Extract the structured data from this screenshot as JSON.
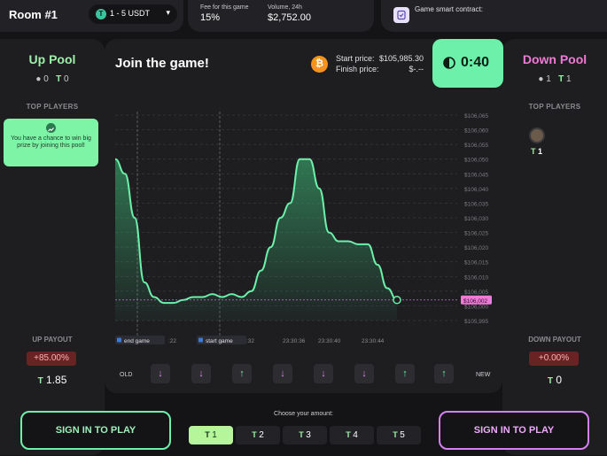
{
  "header": {
    "room_title": "Room #1",
    "range_label": "1 - 5 USDT",
    "fee_label": "Fee for this game",
    "fee_value": "15%",
    "volume_label": "Volume, 24h",
    "volume_value": "$2,752.00",
    "contract_label": "Game smart contract:"
  },
  "up_pool": {
    "title": "Up Pool",
    "players": "0",
    "amount": "0",
    "top_players_label": "TOP PLAYERS",
    "chance_text": "You have a chance to win big prize by joining this pool!",
    "payout_label": "UP PAYOUT",
    "payout_pct": "+85.00%",
    "payout_amount": "1.85"
  },
  "down_pool": {
    "title": "Down Pool",
    "players": "1",
    "amount": "1",
    "top_players_label": "TOP PLAYERS",
    "player_amount": "1",
    "payout_label": "DOWN PAYOUT",
    "payout_pct": "+0.00%",
    "payout_amount": "0"
  },
  "game": {
    "title": "Join the game!",
    "start_price_label": "Start price:",
    "start_price_value": "$105,985.30",
    "finish_price_label": "Finish price:",
    "finish_price_value": "$-.--",
    "timer": "0:40",
    "old_label": "OLD",
    "new_label": "NEW"
  },
  "history_arrows": [
    "down",
    "down",
    "up",
    "down",
    "down",
    "down",
    "up",
    "up"
  ],
  "chart_data": {
    "type": "area",
    "y_ticks": [
      "$106,065",
      "$106,060",
      "$106,055",
      "$106,050",
      "$106,045",
      "$106,040",
      "$106,035",
      "$106,030",
      "$106,025",
      "$106,020",
      "$106,015",
      "$106,010",
      "$106,005",
      "$106,000",
      "$105,995"
    ],
    "x_ticks": [
      ":22",
      ":32",
      "23:30:36",
      "23:30:40",
      "23:30:44"
    ],
    "current_price_label": "$106,002",
    "markers": [
      {
        "label": "end game"
      },
      {
        "label": "start game"
      }
    ],
    "ylim": [
      105995,
      106065
    ],
    "series": [
      {
        "values": [
          106050,
          106045,
          106030,
          106008,
          106003,
          106001,
          106001,
          106002,
          106003,
          106003,
          106004,
          106003,
          106004,
          106003,
          106005,
          106012,
          106020,
          106030,
          106035,
          106050,
          106050,
          106040,
          106025,
          106022,
          106022,
          106021,
          106021,
          106014,
          106006,
          106002
        ]
      }
    ]
  },
  "amount_chooser": {
    "label": "Choose your amount:",
    "options": [
      "1",
      "2",
      "3",
      "4",
      "5"
    ],
    "selected": "1"
  },
  "signin_label": "SIGN IN TO PLAY",
  "colors": {
    "up_accent": "#6cf0aa",
    "down_accent": "#d580f0",
    "up_title": "#9df0a8",
    "down_title": "#f07ad8"
  }
}
